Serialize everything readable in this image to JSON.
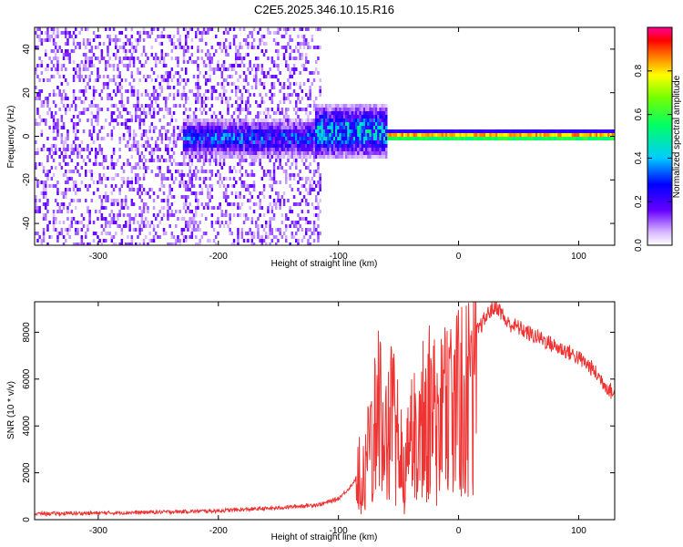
{
  "title": "C2E5.2025.346.10.15.R16",
  "chart_data": [
    {
      "type": "heatmap",
      "xlabel": "Height of straight line (km)",
      "ylabel": "Frequency (Hz)",
      "xlim": [
        -353,
        130
      ],
      "ylim": [
        -50,
        50
      ],
      "xticks": [
        -300,
        -200,
        -100,
        0,
        100
      ],
      "yticks": [
        -40,
        -20,
        0,
        20,
        40
      ],
      "colorbar": {
        "label": "Normalized spectral amplitude",
        "range": [
          0,
          1
        ],
        "ticks": [
          0.0,
          0.2,
          0.4,
          0.6,
          0.8
        ],
        "colormap": "rainbow (white→violet→blue→cyan→green→yellow→red→magenta)"
      },
      "features": [
        {
          "x_range": [
            -353,
            -115
          ],
          "description": "broadband weak violet noise over full frequency range"
        },
        {
          "x_range": [
            -230,
            -115
          ],
          "center_hz": 0,
          "halfwidth_hz": 7,
          "peak_amplitude": 0.35
        },
        {
          "x_range": [
            -120,
            -60
          ],
          "center_hz": 3,
          "halfwidth_hz": 10,
          "peak_amplitude": 0.45
        },
        {
          "x_range": [
            -60,
            130
          ],
          "center_hz": 1,
          "halfwidth_hz": 2,
          "peak_amplitude": 0.95
        }
      ]
    },
    {
      "type": "line",
      "xlabel": "Height of straight line (km)",
      "ylabel": "SNR (10 * v/v)",
      "xlim": [
        -353,
        130
      ],
      "ylim": [
        0,
        9300
      ],
      "xticks": [
        -300,
        -200,
        -100,
        0,
        100
      ],
      "yticks": [
        0,
        2000,
        4000,
        6000,
        8000
      ],
      "color": "#ee3333",
      "points": [
        [
          -353,
          250
        ],
        [
          -300,
          280
        ],
        [
          -250,
          320
        ],
        [
          -200,
          380
        ],
        [
          -150,
          500
        ],
        [
          -115,
          650
        ],
        [
          -100,
          900
        ],
        [
          -90,
          1400
        ],
        [
          -80,
          2200
        ],
        [
          -72,
          4000
        ],
        [
          -66,
          7000
        ],
        [
          -62,
          3500
        ],
        [
          -56,
          6000
        ],
        [
          -50,
          4200
        ],
        [
          -46,
          2000
        ],
        [
          -42,
          3200
        ],
        [
          -38,
          5600
        ],
        [
          -34,
          4200
        ],
        [
          -30,
          6200
        ],
        [
          -24,
          6800
        ],
        [
          -18,
          5400
        ],
        [
          -12,
          6600
        ],
        [
          -6,
          7000
        ],
        [
          0,
          7600
        ],
        [
          5,
          7200
        ],
        [
          10,
          7800
        ],
        [
          15,
          8000
        ],
        [
          20,
          8400
        ],
        [
          26,
          8900
        ],
        [
          32,
          9100
        ],
        [
          36,
          8800
        ],
        [
          40,
          8400
        ],
        [
          50,
          8200
        ],
        [
          60,
          7900
        ],
        [
          70,
          7700
        ],
        [
          80,
          7400
        ],
        [
          90,
          7200
        ],
        [
          100,
          6900
        ],
        [
          110,
          6500
        ],
        [
          120,
          5900
        ],
        [
          130,
          5300
        ]
      ]
    }
  ]
}
